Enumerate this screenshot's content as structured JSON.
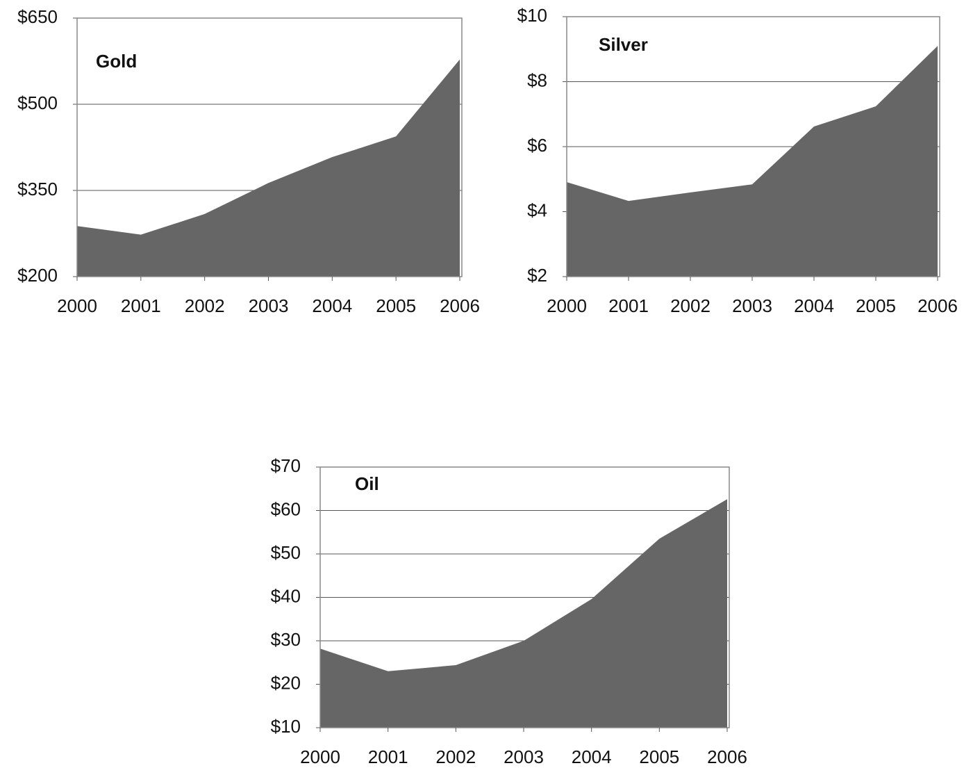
{
  "chart_data": [
    {
      "type": "area",
      "title": "Gold",
      "color": "#666666",
      "grid": true,
      "categories": [
        "2000",
        "2001",
        "2002",
        "2003",
        "2004",
        "2005",
        "2006"
      ],
      "values": [
        288,
        273,
        309,
        363,
        408,
        444,
        578
      ],
      "ylim": [
        200,
        650
      ],
      "yticks": [
        {
          "value": 200,
          "label": "$200"
        },
        {
          "value": 350,
          "label": "$350"
        },
        {
          "value": 500,
          "label": "$500"
        },
        {
          "value": 650,
          "label": "$650"
        }
      ]
    },
    {
      "type": "area",
      "title": "Silver",
      "color": "#666666",
      "grid": true,
      "categories": [
        "2000",
        "2001",
        "2002",
        "2003",
        "2004",
        "2005",
        "2006"
      ],
      "values": [
        4.91,
        4.33,
        4.59,
        4.84,
        6.62,
        7.24,
        9.1
      ],
      "ylim": [
        2,
        10
      ],
      "yticks": [
        {
          "value": 2,
          "label": "$2"
        },
        {
          "value": 4,
          "label": "$4"
        },
        {
          "value": 6,
          "label": "$6"
        },
        {
          "value": 8,
          "label": "$8"
        },
        {
          "value": 10,
          "label": "$10"
        }
      ]
    },
    {
      "type": "area",
      "title": "Oil",
      "color": "#666666",
      "grid": true,
      "categories": [
        "2000",
        "2001",
        "2002",
        "2003",
        "2004",
        "2005",
        "2006"
      ],
      "values": [
        28.2,
        23,
        24.4,
        30,
        39.6,
        53.5,
        62.6
      ],
      "ylim": [
        10,
        70
      ],
      "yticks": [
        {
          "value": 10,
          "label": "$10"
        },
        {
          "value": 20,
          "label": "$20"
        },
        {
          "value": 30,
          "label": "$30"
        },
        {
          "value": 40,
          "label": "$40"
        },
        {
          "value": 50,
          "label": "$50"
        },
        {
          "value": 60,
          "label": "$60"
        },
        {
          "value": 70,
          "label": "$70"
        }
      ]
    }
  ]
}
